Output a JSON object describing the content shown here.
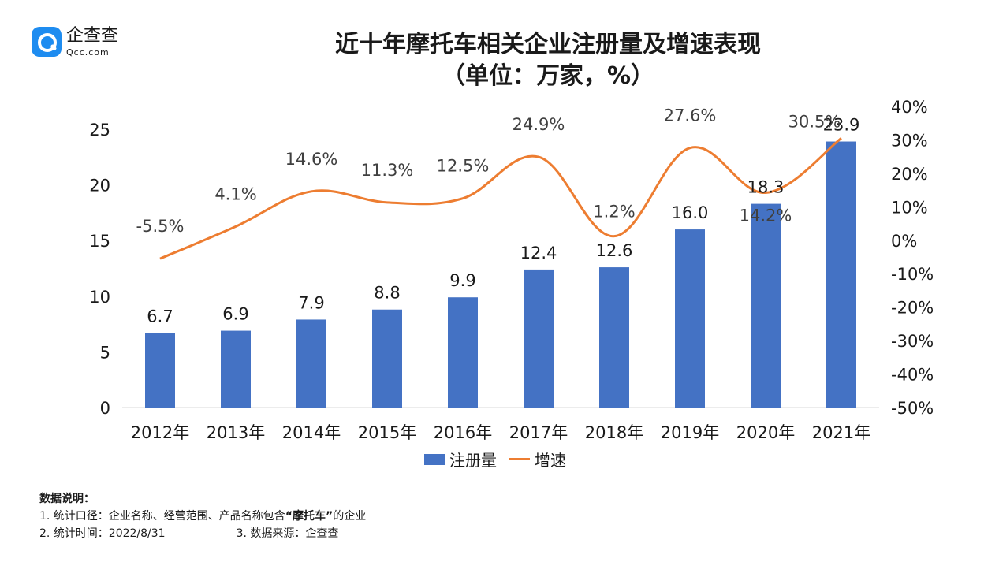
{
  "logo": {
    "cn": "企查查",
    "en": "Qcc.com"
  },
  "header": {
    "title": "近十年摩托车相关企业注册量及增速表现",
    "subtitle": "（单位：万家，%）"
  },
  "chart_data": {
    "type": "bar+line",
    "categories": [
      "2012年",
      "2013年",
      "2014年",
      "2015年",
      "2016年",
      "2017年",
      "2018年",
      "2019年",
      "2020年",
      "2021年"
    ],
    "series": [
      {
        "name": "注册量",
        "type": "bar",
        "axis": "left",
        "color": "#4472c4",
        "values": [
          6.7,
          6.9,
          7.9,
          8.8,
          9.9,
          12.4,
          12.6,
          16.0,
          18.3,
          23.9
        ],
        "labels": [
          "6.7",
          "6.9",
          "7.9",
          "8.8",
          "9.9",
          "12.4",
          "12.6",
          "16.0",
          "18.3",
          "23.9"
        ]
      },
      {
        "name": "增速",
        "type": "line",
        "axis": "right",
        "color": "#ed7d31",
        "values": [
          -5.5,
          4.1,
          14.6,
          11.3,
          12.5,
          24.9,
          1.2,
          27.6,
          14.2,
          30.5
        ],
        "labels": [
          "-5.5%",
          "4.1%",
          "14.6%",
          "11.3%",
          "12.5%",
          "24.9%",
          "1.2%",
          "27.6%",
          "14.2%",
          "30.5%"
        ]
      }
    ],
    "y_left": {
      "min": 0,
      "max": 25,
      "ticks": [
        "0",
        "5",
        "10",
        "15",
        "20",
        "25"
      ]
    },
    "y_right": {
      "min": -50,
      "max": 40,
      "ticks": [
        "-50%",
        "-40%",
        "-30%",
        "-20%",
        "-10%",
        "0%",
        "10%",
        "20%",
        "30%",
        "40%"
      ]
    },
    "legend": "bottom"
  },
  "legend": {
    "bar": "注册量",
    "line": "增速"
  },
  "notes": {
    "heading": "数据说明：",
    "line1_pre": "1. 统计口径：企业名称、经营范围、产品名称包含",
    "line1_bold": "“摩托车”",
    "line1_post": "的企业",
    "line2a": "2. 统计时间：2022/8/31",
    "line2b": "3. 数据来源：企查查"
  }
}
